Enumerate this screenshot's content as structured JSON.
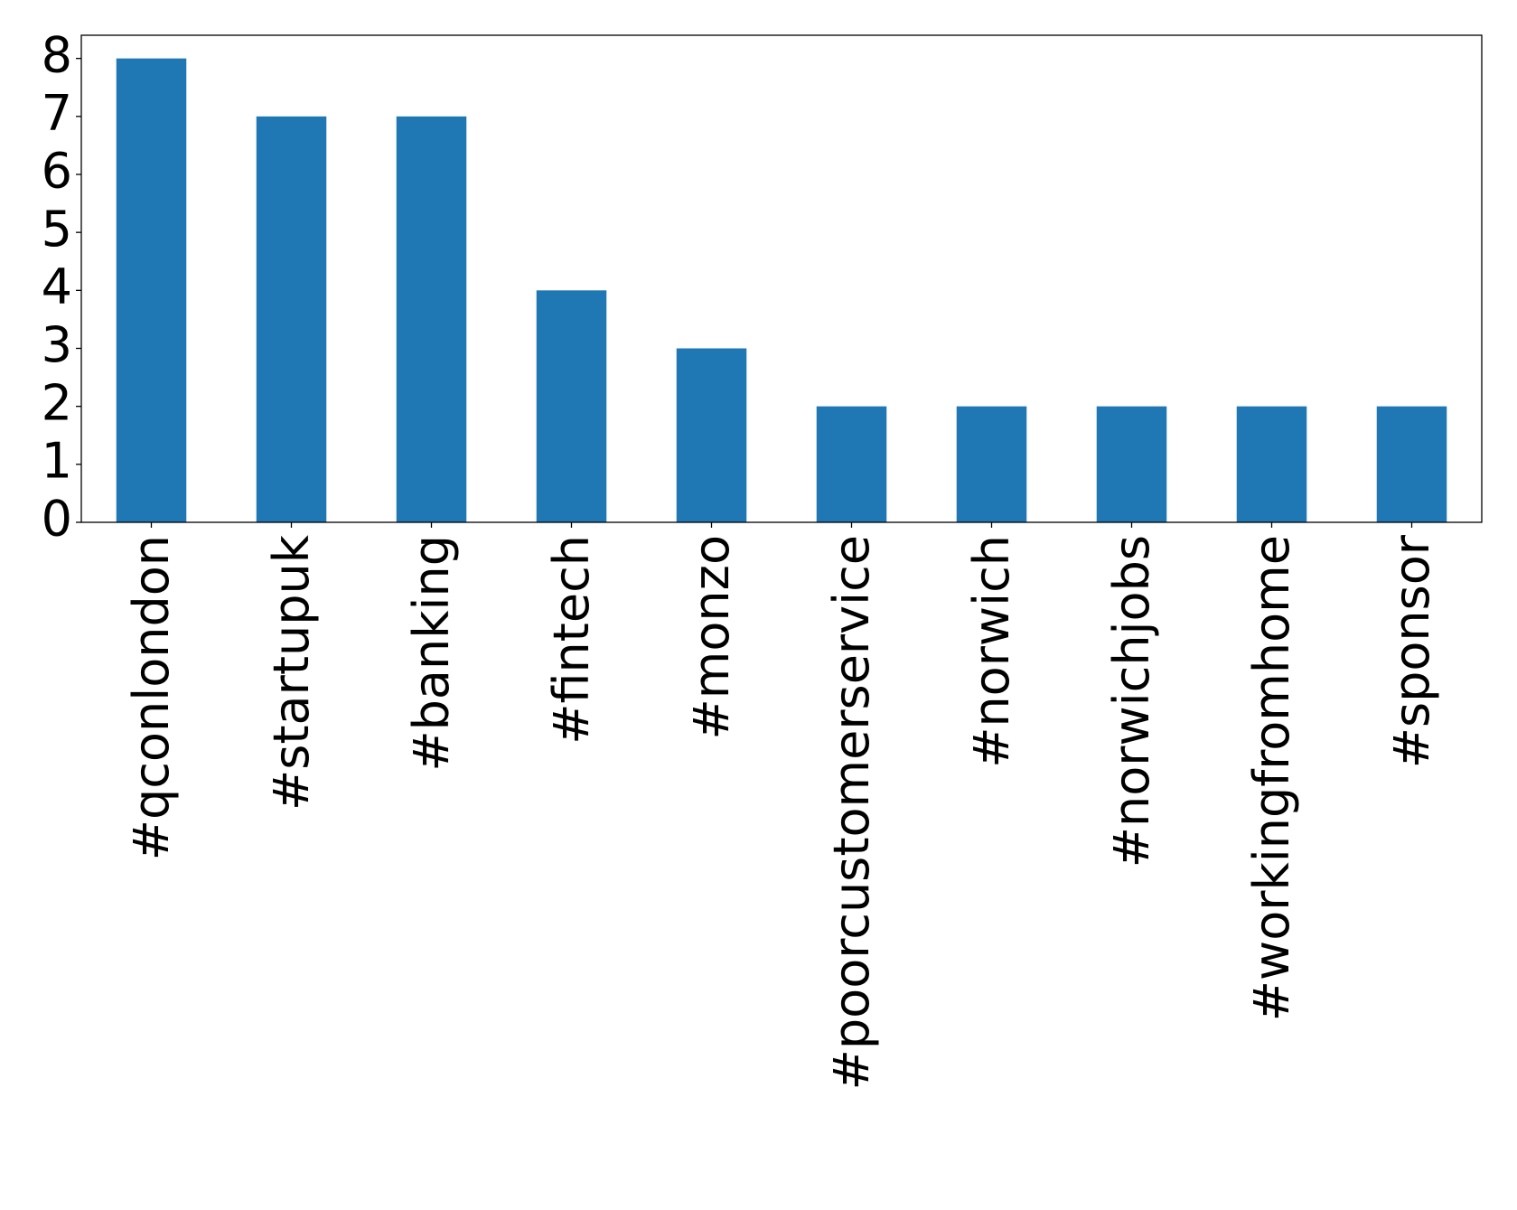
{
  "chart_data": {
    "type": "bar",
    "categories": [
      "#qconlondon",
      "#startupuk",
      "#banking",
      "#fintech",
      "#monzo",
      "#poorcustomerservice",
      "#norwich",
      "#norwichjobs",
      "#workingfromhome",
      "#sponsor"
    ],
    "values": [
      8,
      7,
      7,
      4,
      3,
      2,
      2,
      2,
      2,
      2
    ],
    "color": "#1f77b4",
    "ylim": [
      0,
      8.4
    ],
    "yticks": [
      0,
      1,
      2,
      3,
      4,
      5,
      6,
      7,
      8
    ],
    "grid": false
  }
}
